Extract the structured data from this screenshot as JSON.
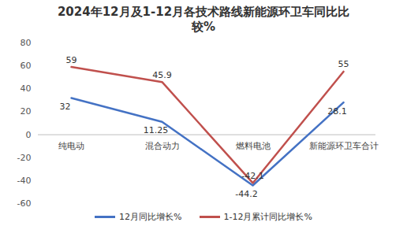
{
  "chart_data": {
    "type": "line",
    "title": "2024年12月及1-12月各技术路线新能源环卫车同比比较%",
    "categories": [
      "纯电动",
      "混合动力",
      "燃料电池",
      "新能源环卫车合计"
    ],
    "series": [
      {
        "name": "12月同比增长%",
        "color": "#4472c4",
        "values": [
          32,
          11.25,
          -44.2,
          28.1
        ]
      },
      {
        "name": "1-12月累计同比增长%",
        "color": "#c0504d",
        "values": [
          59,
          45.9,
          -42.1,
          55
        ]
      }
    ],
    "ylim": [
      -60,
      80
    ],
    "yticks": [
      -60,
      -40,
      -20,
      0,
      20,
      40,
      60,
      80
    ],
    "grid": false,
    "data_labels": true,
    "legend": "bottom"
  }
}
